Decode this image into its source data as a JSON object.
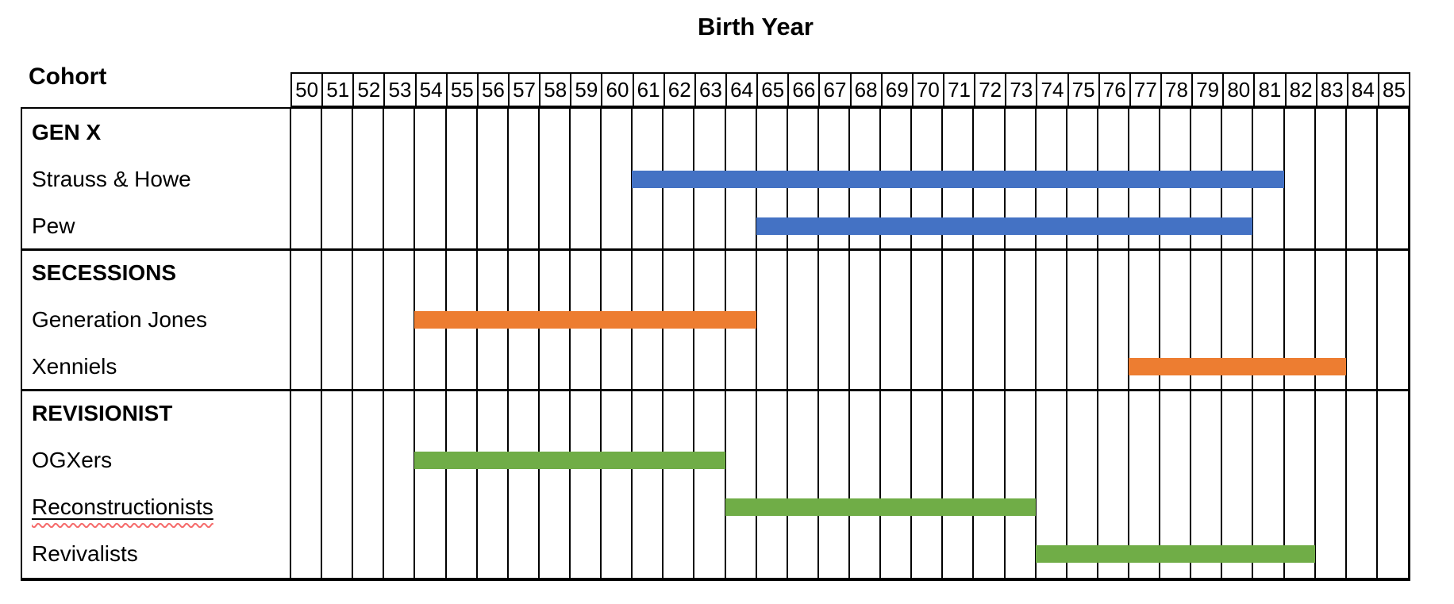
{
  "colors": {
    "gen_x_bar": "#4472C4",
    "secessions_bar": "#ED7D31",
    "revisionist_bar": "#70AD47",
    "grid_line": "#000000",
    "spellcheck_underline": "#F56B6B"
  },
  "chart_data": {
    "type": "gantt",
    "title": "Birth Year",
    "row_axis_label": "Cohort",
    "x_axis": {
      "start_year": 1950,
      "end_year": 1985,
      "tick_labels": [
        "50",
        "51",
        "52",
        "53",
        "54",
        "55",
        "56",
        "57",
        "58",
        "59",
        "60",
        "61",
        "62",
        "63",
        "64",
        "65",
        "66",
        "67",
        "68",
        "69",
        "70",
        "71",
        "72",
        "73",
        "74",
        "75",
        "76",
        "77",
        "78",
        "79",
        "80",
        "81",
        "82",
        "83",
        "84",
        "85"
      ]
    },
    "sections": [
      {
        "header": "GEN X",
        "bar_color": "#4472C4",
        "rows": [
          {
            "label": "Strauss & Howe",
            "start": 1961,
            "end": 1981
          },
          {
            "label": "Pew",
            "start": 1965,
            "end": 1980
          }
        ]
      },
      {
        "header": "SECESSIONS",
        "bar_color": "#ED7D31",
        "rows": [
          {
            "label": "Generation Jones",
            "start": 1954,
            "end": 1964
          },
          {
            "label": "Xenniels",
            "start": 1977,
            "end": 1983
          }
        ]
      },
      {
        "header": "REVISIONIST",
        "bar_color": "#70AD47",
        "rows": [
          {
            "label": "OGXers",
            "start": 1954,
            "end": 1963
          },
          {
            "label": "Reconstructionists",
            "start": 1964,
            "end": 1973,
            "underlined": true,
            "spellcheck_squiggle": true
          },
          {
            "label": "Revivalists",
            "start": 1974,
            "end": 1982
          }
        ]
      }
    ]
  }
}
